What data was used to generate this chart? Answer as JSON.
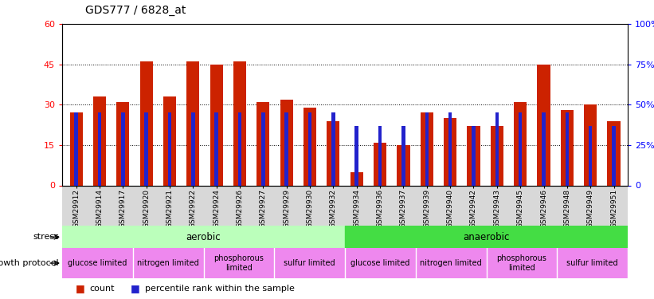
{
  "title": "GDS777 / 6828_at",
  "samples": [
    "GSM29912",
    "GSM29914",
    "GSM29917",
    "GSM29920",
    "GSM29921",
    "GSM29922",
    "GSM29924",
    "GSM29926",
    "GSM29927",
    "GSM29929",
    "GSM29930",
    "GSM29932",
    "GSM29934",
    "GSM29936",
    "GSM29937",
    "GSM29939",
    "GSM29940",
    "GSM29942",
    "GSM29943",
    "GSM29945",
    "GSM29946",
    "GSM29948",
    "GSM29949",
    "GSM29951"
  ],
  "count_values": [
    27,
    33,
    31,
    46,
    33,
    46,
    45,
    46,
    31,
    32,
    29,
    24,
    5,
    16,
    15,
    27,
    25,
    22,
    22,
    31,
    45,
    28,
    30,
    24
  ],
  "percentile_values": [
    27,
    27,
    27,
    27,
    27,
    27,
    27,
    27,
    27,
    27,
    27,
    27,
    22,
    22,
    22,
    27,
    27,
    22,
    27,
    27,
    27,
    27,
    22,
    22
  ],
  "ylim_left": [
    0,
    60
  ],
  "ylim_right": [
    0,
    100
  ],
  "yticks_left": [
    0,
    15,
    30,
    45,
    60
  ],
  "ytick_labels_left": [
    "0",
    "15",
    "30",
    "45",
    "60"
  ],
  "yticks_right": [
    0,
    25,
    50,
    75,
    100
  ],
  "ytick_labels_right": [
    "0",
    "25%",
    "50%",
    "75%",
    "100%"
  ],
  "bar_color": "#cc2200",
  "percentile_color": "#2222cc",
  "stress_aerobic": {
    "label": "aerobic",
    "start": 0,
    "end": 12,
    "color": "#bbffbb"
  },
  "stress_anaerobic": {
    "label": "anaerobic",
    "start": 12,
    "end": 24,
    "color": "#44dd44"
  },
  "growth_segments": [
    {
      "label": "glucose limited",
      "start": 0,
      "end": 3,
      "color": "#ee88ee"
    },
    {
      "label": "nitrogen limited",
      "start": 3,
      "end": 6,
      "color": "#ee88ee"
    },
    {
      "label": "phosphorous\nlimited",
      "start": 6,
      "end": 9,
      "color": "#ee88ee"
    },
    {
      "label": "sulfur limited",
      "start": 9,
      "end": 12,
      "color": "#ee88ee"
    },
    {
      "label": "glucose limited",
      "start": 12,
      "end": 15,
      "color": "#ee88ee"
    },
    {
      "label": "nitrogen limited",
      "start": 15,
      "end": 18,
      "color": "#ee88ee"
    },
    {
      "label": "phosphorous\nlimited",
      "start": 18,
      "end": 21,
      "color": "#ee88ee"
    },
    {
      "label": "sulfur limited",
      "start": 21,
      "end": 24,
      "color": "#ee88ee"
    }
  ],
  "legend_count_label": "count",
  "legend_percentile_label": "percentile rank within the sample",
  "stress_label": "stress",
  "growth_label": "growth protocol",
  "background_color": "#ffffff"
}
